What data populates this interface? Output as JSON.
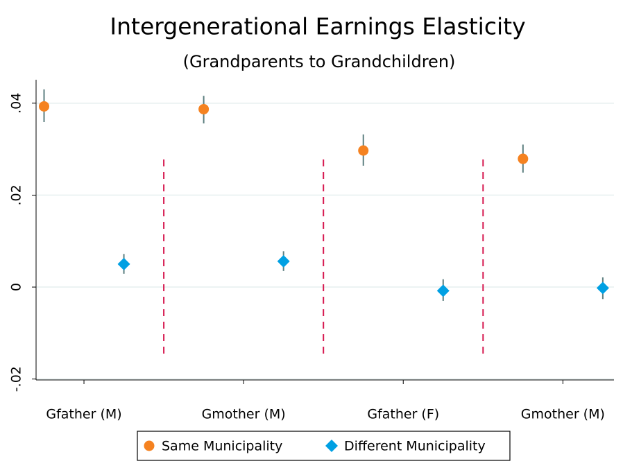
{
  "chart_data": {
    "type": "errorbar",
    "title": "Intergenerational Earnings Elasticity",
    "subtitle": "(Grandparents to Grandchildren)",
    "xlim": [
      0.7,
      4.32
    ],
    "xticks": [
      {
        "value": 1,
        "label": "Gfather (M)"
      },
      {
        "value": 2,
        "label": "Gmother (M)"
      },
      {
        "value": 3,
        "label": "Gfather (F)"
      },
      {
        "value": 4,
        "label": "Gmother (M)"
      }
    ],
    "ylim": [
      -0.0202,
      0.0451
    ],
    "yticks": [
      {
        "value": 0.04,
        "label": ".04"
      },
      {
        "value": 0.02,
        "label": ".02"
      },
      {
        "value": 0,
        "label": "0"
      },
      {
        "value": -0.02,
        "label": "-.02"
      }
    ],
    "grid": true,
    "series": [
      {
        "name": "Same Municipality",
        "color": "#f58220",
        "marker": "circle",
        "x": [
          0.75,
          1.75,
          2.75,
          3.75
        ],
        "values": [
          0.0393,
          0.0387,
          0.0297,
          0.0279
        ],
        "lower": [
          0.0359,
          0.0356,
          0.0264,
          0.0249
        ],
        "upper": [
          0.043,
          0.0416,
          0.0332,
          0.031
        ]
      },
      {
        "name": "Different Municipality",
        "color": "#00a0e3",
        "marker": "diamond",
        "x": [
          1.25,
          2.25,
          3.25,
          4.25
        ],
        "values": [
          0.005,
          0.0056,
          -0.0008,
          -0.0002
        ],
        "lower": [
          0.0029,
          0.0035,
          -0.003,
          -0.0026
        ],
        "upper": [
          0.0072,
          0.0078,
          0.0017,
          0.0021
        ]
      }
    ]
  }
}
